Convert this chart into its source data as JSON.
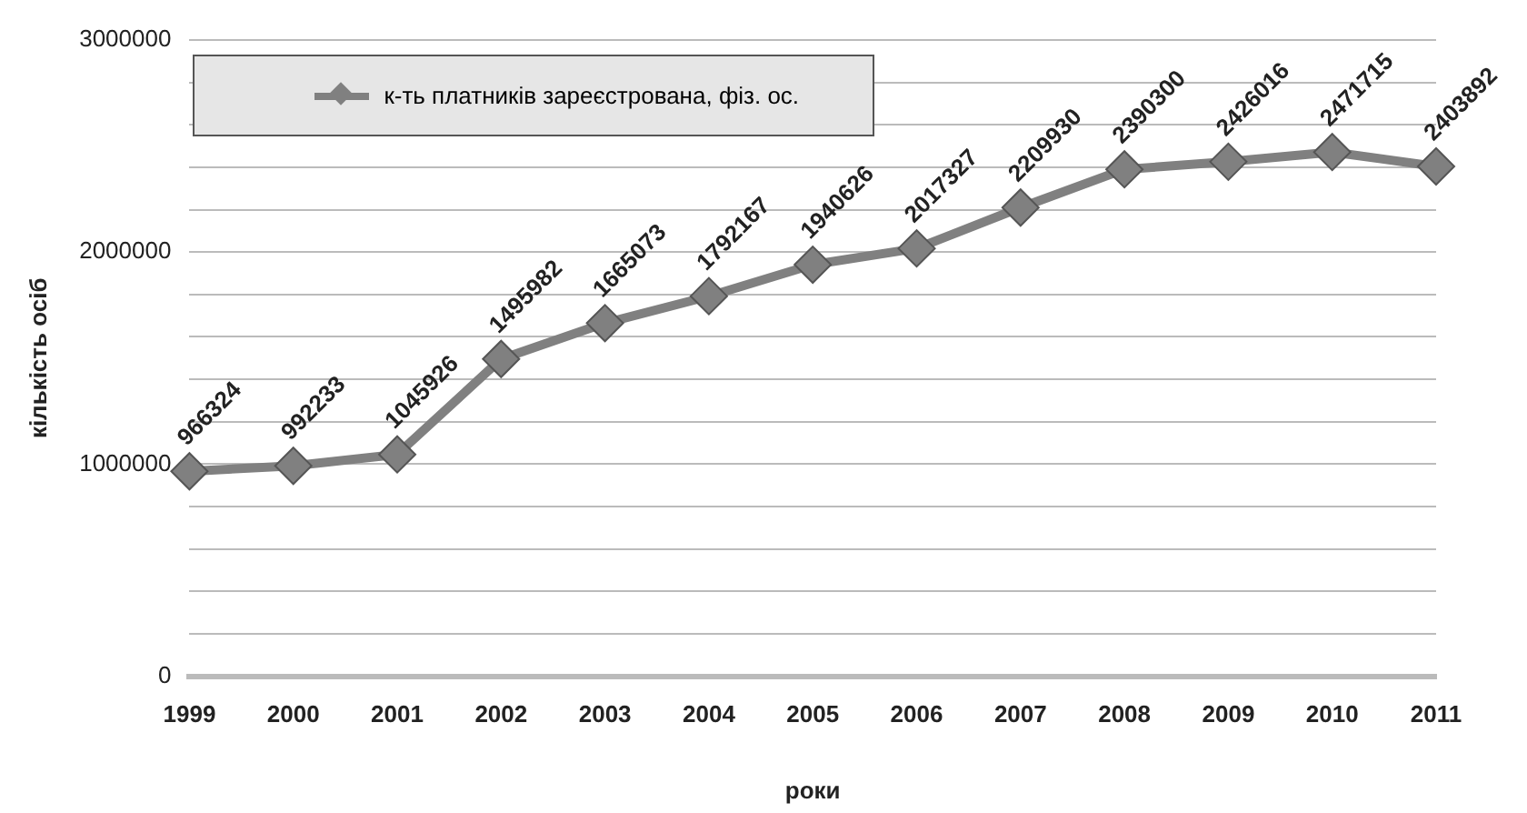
{
  "chart_data": {
    "type": "line",
    "xlabel": "роки",
    "ylabel": "кількість осіб",
    "categories": [
      "1999",
      "2000",
      "2001",
      "2002",
      "2003",
      "2004",
      "2005",
      "2006",
      "2007",
      "2008",
      "2009",
      "2010",
      "2011"
    ],
    "series": [
      {
        "name": "к-ть платників зареєстрована, фіз. ос.",
        "color": "#808080",
        "values": [
          966324,
          992233,
          1045926,
          1495982,
          1665073,
          1792167,
          1940626,
          2017327,
          2209930,
          2390300,
          2426016,
          2471715,
          2403892
        ]
      }
    ],
    "ylim": [
      0,
      3000000
    ],
    "yticks": [
      0,
      {
        "value": 200000,
        "label": null
      },
      {
        "value": 400000,
        "label": null
      },
      {
        "value": 600000,
        "label": null
      },
      {
        "value": 800000,
        "label": null
      },
      1000000,
      {
        "value": 1200000,
        "label": null
      },
      {
        "value": 1400000,
        "label": null
      },
      {
        "value": 1600000,
        "label": null
      },
      {
        "value": 1800000,
        "label": null
      },
      2000000,
      {
        "value": 2200000,
        "label": null
      },
      {
        "value": 2400000,
        "label": null
      },
      {
        "value": 2600000,
        "label": null
      },
      {
        "value": 2800000,
        "label": null
      },
      3000000
    ],
    "grid": "y",
    "legend": "top left",
    "marker": "diamond",
    "line_style": "solid",
    "data_labels": true
  }
}
